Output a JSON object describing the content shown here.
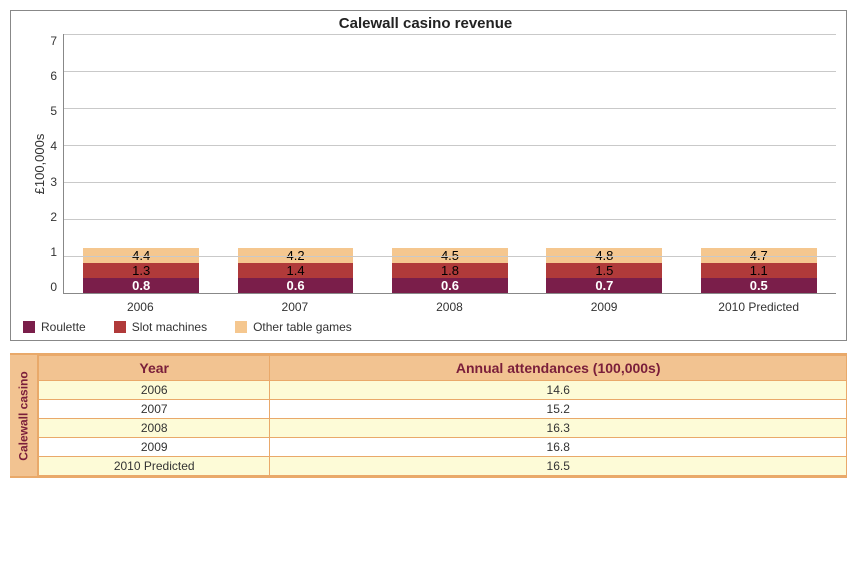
{
  "chart": {
    "type": "stacked-bar",
    "title": "Calewall casino revenue",
    "ylabel": "£100,000s",
    "ylim": [
      0,
      7
    ],
    "ytick_step": 1,
    "yticks": [
      "0",
      "1",
      "2",
      "3",
      "4",
      "5",
      "6",
      "7"
    ],
    "categories": [
      "2006",
      "2007",
      "2008",
      "2009",
      "2010 Predicted"
    ],
    "series": [
      {
        "name": "Roulette",
        "color": "#7a1e4a",
        "text_color": "#ffffff"
      },
      {
        "name": "Slot machines",
        "color": "#b03a3a",
        "text_color": "#000000"
      },
      {
        "name": "Other table games",
        "color": "#f5c78f",
        "text_color": "#000000"
      }
    ],
    "stacks": [
      [
        {
          "v": 0.8,
          "l": "0.8"
        },
        {
          "v": 1.3,
          "l": "1.3"
        },
        {
          "v": 4.4,
          "l": "4.4"
        }
      ],
      [
        {
          "v": 0.6,
          "l": "0.6"
        },
        {
          "v": 1.4,
          "l": "1.4"
        },
        {
          "v": 4.2,
          "l": "4.2"
        }
      ],
      [
        {
          "v": 0.6,
          "l": "0.6"
        },
        {
          "v": 1.8,
          "l": "1.8"
        },
        {
          "v": 4.5,
          "l": "4.5"
        }
      ],
      [
        {
          "v": 0.7,
          "l": "0.7"
        },
        {
          "v": 1.5,
          "l": "1.5"
        },
        {
          "v": 4.8,
          "l": "4.8"
        }
      ],
      [
        {
          "v": 0.5,
          "l": "0.5"
        },
        {
          "v": 1.1,
          "l": "1.1"
        },
        {
          "v": 4.7,
          "l": "4.7"
        }
      ]
    ],
    "bar_width_pct": 15,
    "grid_color": "#c9c9c9",
    "border_color": "#888888",
    "background_color": "#ffffff"
  },
  "table": {
    "side_label": "Calewall casino",
    "columns": [
      "Year",
      "Annual attendances (100,000s)"
    ],
    "rows": [
      [
        "2006",
        "14.6"
      ],
      [
        "2007",
        "15.2"
      ],
      [
        "2008",
        "16.3"
      ],
      [
        "2009",
        "16.8"
      ],
      [
        "2010 Predicted",
        "16.5"
      ]
    ],
    "header_bg": "#f2c391",
    "header_text": "#7a1e3a",
    "row_alt_bg": "#fdfbd7",
    "row_bg": "#ffffff",
    "border_color": "#e9a96a"
  }
}
